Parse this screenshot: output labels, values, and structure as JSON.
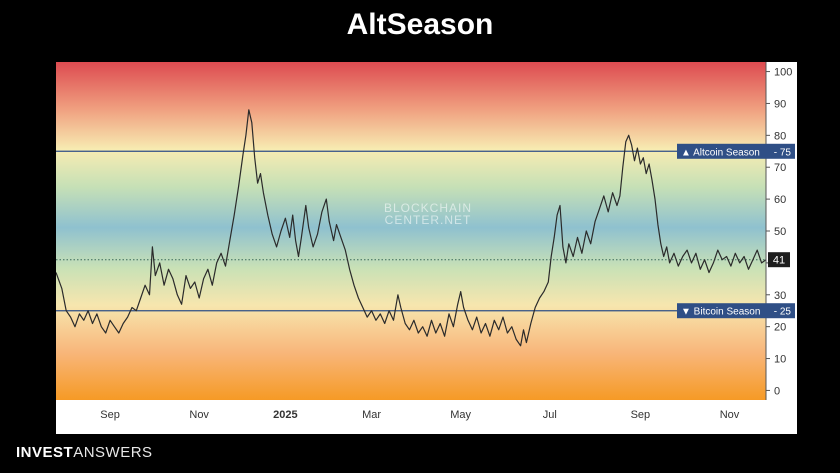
{
  "page": {
    "title": "AltSeason",
    "brand_bold": "INVEST",
    "brand_light": "ANSWERS"
  },
  "chart_data": {
    "type": "line",
    "title": "AltSeason",
    "watermark": [
      "BLOCKCHAIN",
      "CENTER.NET"
    ],
    "ylim": [
      -3,
      103
    ],
    "yticks": [
      0,
      10,
      20,
      30,
      40,
      50,
      60,
      70,
      80,
      90,
      100
    ],
    "x_tick_labels": [
      "Sep",
      "Nov",
      "2025",
      "Mar",
      "May",
      "Jul",
      "Sep",
      "Nov"
    ],
    "x_tick_values": [
      37,
      98,
      157,
      216,
      277,
      338,
      400,
      461
    ],
    "x_range": [
      0,
      486
    ],
    "x_unit": "days",
    "reference_lines": [
      {
        "label": "▲ Altcoin Season",
        "value": 75,
        "value_label": "75",
        "color": "#2f4f86"
      },
      {
        "label": "▼ Bitcoin Season",
        "value": 25,
        "value_label": "25",
        "color": "#2f4f86"
      }
    ],
    "current_value": 41,
    "current_value_label": "41",
    "background_gradient": "red at 100 through orange, yellow, green, blue at 50, back through green, yellow to orange at 0",
    "series": [
      {
        "points": [
          [
            0,
            37
          ],
          [
            4,
            32
          ],
          [
            7,
            25
          ],
          [
            10,
            23
          ],
          [
            13,
            20
          ],
          [
            16,
            24
          ],
          [
            19,
            22
          ],
          [
            22,
            25
          ],
          [
            25,
            21
          ],
          [
            28,
            24
          ],
          [
            31,
            20
          ],
          [
            34,
            18
          ],
          [
            37,
            22
          ],
          [
            40,
            20
          ],
          [
            43,
            18
          ],
          [
            46,
            21
          ],
          [
            49,
            23
          ],
          [
            52,
            26
          ],
          [
            55,
            25
          ],
          [
            58,
            29
          ],
          [
            61,
            33
          ],
          [
            64,
            30
          ],
          [
            66,
            45
          ],
          [
            68,
            36
          ],
          [
            71,
            40
          ],
          [
            74,
            33
          ],
          [
            77,
            38
          ],
          [
            80,
            35
          ],
          [
            83,
            30
          ],
          [
            86,
            27
          ],
          [
            89,
            36
          ],
          [
            92,
            32
          ],
          [
            95,
            34
          ],
          [
            98,
            29
          ],
          [
            101,
            35
          ],
          [
            104,
            38
          ],
          [
            107,
            33
          ],
          [
            110,
            40
          ],
          [
            113,
            43
          ],
          [
            116,
            39
          ],
          [
            119,
            47
          ],
          [
            122,
            55
          ],
          [
            125,
            64
          ],
          [
            128,
            74
          ],
          [
            130,
            80
          ],
          [
            132,
            88
          ],
          [
            134,
            84
          ],
          [
            136,
            73
          ],
          [
            138,
            65
          ],
          [
            140,
            68
          ],
          [
            142,
            62
          ],
          [
            145,
            55
          ],
          [
            148,
            49
          ],
          [
            151,
            45
          ],
          [
            154,
            50
          ],
          [
            157,
            54
          ],
          [
            160,
            48
          ],
          [
            162,
            55
          ],
          [
            164,
            47
          ],
          [
            166,
            42
          ],
          [
            168,
            48
          ],
          [
            171,
            58
          ],
          [
            173,
            51
          ],
          [
            176,
            45
          ],
          [
            179,
            49
          ],
          [
            182,
            56
          ],
          [
            185,
            60
          ],
          [
            187,
            53
          ],
          [
            190,
            47
          ],
          [
            192,
            52
          ],
          [
            195,
            48
          ],
          [
            198,
            44
          ],
          [
            201,
            38
          ],
          [
            204,
            33
          ],
          [
            207,
            29
          ],
          [
            210,
            26
          ],
          [
            213,
            23
          ],
          [
            216,
            25
          ],
          [
            219,
            22
          ],
          [
            222,
            24
          ],
          [
            225,
            21
          ],
          [
            228,
            25
          ],
          [
            231,
            22
          ],
          [
            234,
            30
          ],
          [
            236,
            26
          ],
          [
            239,
            21
          ],
          [
            242,
            19
          ],
          [
            245,
            22
          ],
          [
            248,
            18
          ],
          [
            251,
            20
          ],
          [
            254,
            17
          ],
          [
            257,
            22
          ],
          [
            260,
            18
          ],
          [
            263,
            21
          ],
          [
            266,
            17
          ],
          [
            269,
            24
          ],
          [
            272,
            20
          ],
          [
            275,
            27
          ],
          [
            277,
            31
          ],
          [
            279,
            26
          ],
          [
            282,
            22
          ],
          [
            285,
            19
          ],
          [
            288,
            23
          ],
          [
            291,
            18
          ],
          [
            294,
            21
          ],
          [
            297,
            17
          ],
          [
            300,
            22
          ],
          [
            303,
            19
          ],
          [
            306,
            23
          ],
          [
            309,
            18
          ],
          [
            312,
            20
          ],
          [
            315,
            16
          ],
          [
            318,
            14
          ],
          [
            320,
            19
          ],
          [
            322,
            15
          ],
          [
            325,
            21
          ],
          [
            328,
            26
          ],
          [
            331,
            29
          ],
          [
            334,
            31
          ],
          [
            337,
            34
          ],
          [
            339,
            42
          ],
          [
            341,
            48
          ],
          [
            343,
            55
          ],
          [
            345,
            58
          ],
          [
            347,
            45
          ],
          [
            349,
            40
          ],
          [
            351,
            46
          ],
          [
            354,
            42
          ],
          [
            357,
            48
          ],
          [
            360,
            43
          ],
          [
            363,
            50
          ],
          [
            366,
            46
          ],
          [
            369,
            53
          ],
          [
            372,
            57
          ],
          [
            375,
            61
          ],
          [
            378,
            56
          ],
          [
            381,
            62
          ],
          [
            384,
            58
          ],
          [
            386,
            61
          ],
          [
            388,
            70
          ],
          [
            390,
            78
          ],
          [
            392,
            80
          ],
          [
            394,
            77
          ],
          [
            396,
            72
          ],
          [
            398,
            76
          ],
          [
            400,
            71
          ],
          [
            402,
            73
          ],
          [
            404,
            68
          ],
          [
            406,
            71
          ],
          [
            408,
            66
          ],
          [
            410,
            60
          ],
          [
            412,
            52
          ],
          [
            414,
            46
          ],
          [
            416,
            42
          ],
          [
            418,
            45
          ],
          [
            420,
            40
          ],
          [
            423,
            43
          ],
          [
            426,
            39
          ],
          [
            429,
            42
          ],
          [
            432,
            44
          ],
          [
            435,
            40
          ],
          [
            438,
            43
          ],
          [
            441,
            38
          ],
          [
            444,
            41
          ],
          [
            447,
            37
          ],
          [
            450,
            40
          ],
          [
            453,
            44
          ],
          [
            456,
            41
          ],
          [
            459,
            42
          ],
          [
            462,
            39
          ],
          [
            465,
            43
          ],
          [
            468,
            40
          ],
          [
            471,
            42
          ],
          [
            474,
            38
          ],
          [
            477,
            41
          ],
          [
            480,
            44
          ],
          [
            483,
            40
          ],
          [
            486,
            41
          ]
        ]
      }
    ]
  }
}
